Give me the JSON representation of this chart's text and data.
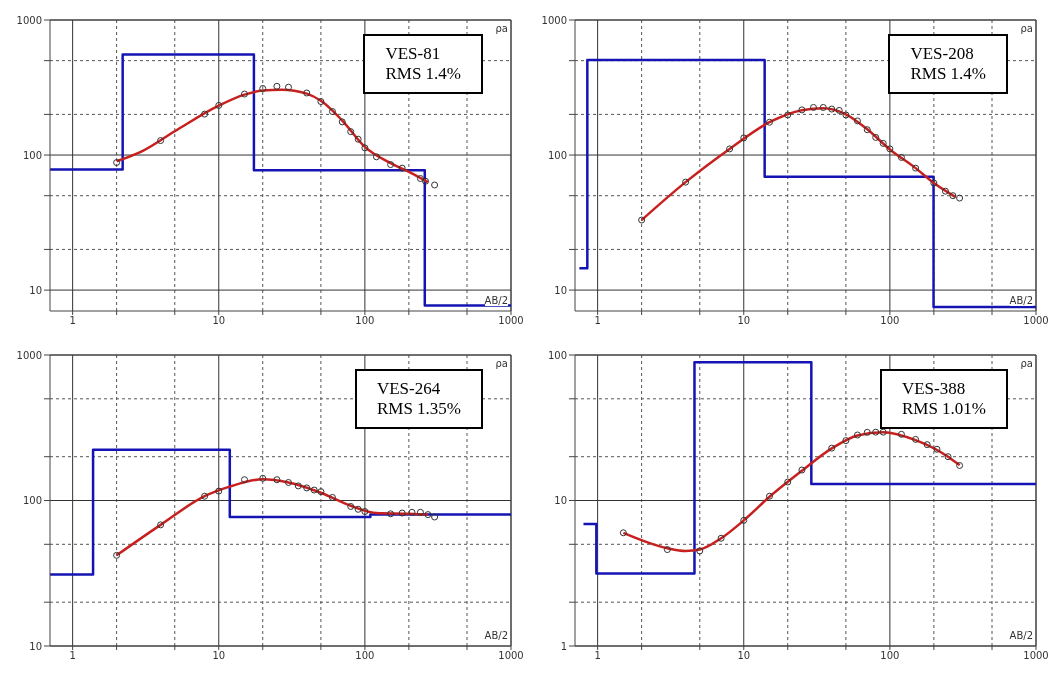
{
  "chart_data": [
    {
      "type": "line",
      "xlabel": "AB/2",
      "ylabel": "ρa",
      "annotations": [
        "VES-81",
        "RMS 1.4%"
      ],
      "log": "xy",
      "grid": true,
      "xlim": [
        0.7,
        1000
      ],
      "ylim": [
        7,
        1000
      ],
      "xticks": [
        1,
        {
          "value": 2,
          "label": null
        },
        {
          "value": 5,
          "label": null
        },
        10,
        {
          "value": 20,
          "label": null
        },
        {
          "value": 50,
          "label": null
        },
        100,
        {
          "value": 200,
          "label": null
        },
        {
          "value": 500,
          "label": null
        },
        1000
      ],
      "yticks": [
        10,
        {
          "value": 20,
          "label": null
        },
        {
          "value": 50,
          "label": null
        },
        100,
        {
          "value": 200,
          "label": null
        },
        {
          "value": 500,
          "label": null
        },
        1000
      ],
      "series": [
        {
          "type": "step",
          "color": "#1414b4",
          "x": [
            0.7,
            2.2,
            17.4,
            257,
            1000
          ],
          "values": [
            78,
            555,
            77,
            7.7,
            7.7
          ]
        },
        {
          "color": "#c8201e",
          "x": [
            2,
            3,
            5,
            10,
            15,
            20,
            27,
            40,
            50,
            70,
            100,
            150,
            200,
            270
          ],
          "values": [
            90,
            107,
            150,
            232,
            280,
            300,
            305,
            285,
            252,
            180,
            115,
            87,
            75,
            63
          ]
        },
        {
          "type": "scatter",
          "color": "#333333",
          "marker": "circle",
          "x": [
            2,
            4,
            8,
            10,
            15,
            20,
            25,
            30,
            40,
            50,
            60,
            70,
            80,
            90,
            100,
            120,
            150,
            180,
            240,
            260,
            300
          ],
          "values": [
            88,
            128,
            201,
            233,
            283,
            311,
            323,
            318,
            288,
            249,
            210,
            176,
            149,
            131,
            113,
            97,
            85,
            80,
            67,
            64,
            60
          ]
        }
      ]
    },
    {
      "type": "line",
      "xlabel": "AB/2",
      "ylabel": "ρa",
      "annotations": [
        "VES-208",
        "RMS 1.4%"
      ],
      "log": "xy",
      "grid": true,
      "xlim": [
        0.7,
        1000
      ],
      "ylim": [
        7,
        1000
      ],
      "xticks": [
        1,
        {
          "value": 2,
          "label": null
        },
        {
          "value": 5,
          "label": null
        },
        10,
        {
          "value": 20,
          "label": null
        },
        {
          "value": 50,
          "label": null
        },
        100,
        {
          "value": 200,
          "label": null
        },
        {
          "value": 500,
          "label": null
        },
        1000
      ],
      "yticks": [
        10,
        {
          "value": 20,
          "label": null
        },
        {
          "value": 50,
          "label": null
        },
        100,
        {
          "value": 200,
          "label": null
        },
        {
          "value": 500,
          "label": null
        },
        1000
      ],
      "series": [
        {
          "type": "step",
          "color": "#1414b4",
          "x": [
            0.75,
            0.85,
            13.9,
            199,
            1000
          ],
          "values": [
            14.5,
            505,
            69,
            7.5,
            7.5
          ]
        },
        {
          "color": "#c8201e",
          "x": [
            2,
            4,
            8,
            15,
            25,
            35,
            50,
            70,
            100,
            150,
            200,
            280
          ],
          "values": [
            33,
            63,
            111,
            175,
            215,
            222,
            200,
            155,
            110,
            80,
            62,
            49
          ]
        },
        {
          "type": "scatter",
          "color": "#333333",
          "marker": "circle",
          "x": [
            2,
            4,
            8,
            10,
            15,
            20,
            25,
            30,
            35,
            40,
            45,
            50,
            60,
            70,
            80,
            90,
            100,
            120,
            150,
            200,
            240,
            270,
            300
          ],
          "values": [
            33,
            63,
            111,
            134,
            175,
            198,
            216,
            225,
            225,
            219,
            214,
            198,
            179,
            154,
            135,
            122,
            111,
            96,
            80,
            62,
            54,
            50,
            48
          ]
        }
      ]
    },
    {
      "type": "line",
      "xlabel": "AB/2",
      "ylabel": "ρa",
      "annotations": [
        "VES-264",
        "RMS 1.35%"
      ],
      "log": "xy",
      "grid": true,
      "xlim": [
        0.7,
        1000
      ],
      "ylim": [
        10,
        1000
      ],
      "xticks": [
        1,
        {
          "value": 2,
          "label": null
        },
        {
          "value": 5,
          "label": null
        },
        10,
        {
          "value": 20,
          "label": null
        },
        {
          "value": 50,
          "label": null
        },
        100,
        {
          "value": 200,
          "label": null
        },
        {
          "value": 500,
          "label": null
        },
        1000
      ],
      "yticks": [
        10,
        {
          "value": 20,
          "label": null
        },
        {
          "value": 50,
          "label": null
        },
        100,
        {
          "value": 200,
          "label": null
        },
        {
          "value": 500,
          "label": null
        },
        1000
      ],
      "series": [
        {
          "type": "step",
          "color": "#1414b4",
          "x": [
            0.7,
            1.38,
            11.9,
            109,
            1000
          ],
          "values": [
            31,
            223,
            77,
            80,
            80
          ]
        },
        {
          "color": "#c8201e",
          "x": [
            2,
            4,
            8,
            12,
            20,
            30,
            50,
            80,
            120,
            200,
            270
          ],
          "values": [
            42,
            68,
            107,
            125,
            140,
            133,
            113,
            92,
            82,
            81,
            80
          ]
        },
        {
          "type": "scatter",
          "color": "#333333",
          "marker": "circle",
          "x": [
            2,
            4,
            8,
            10,
            15,
            20,
            25,
            30,
            35,
            40,
            45,
            50,
            60,
            80,
            90,
            100,
            150,
            180,
            210,
            240,
            270,
            300
          ],
          "values": [
            42,
            68,
            107,
            116,
            139,
            142,
            139,
            133,
            126,
            122,
            118,
            115,
            105,
            91,
            87,
            84,
            81,
            82,
            83,
            83,
            80,
            77
          ]
        }
      ]
    },
    {
      "type": "line",
      "xlabel": "AB/2",
      "ylabel": "ρa",
      "annotations": [
        "VES-388",
        "RMS 1.01%"
      ],
      "log": "xy",
      "grid": true,
      "xlim": [
        0.7,
        1000
      ],
      "ylim": [
        1,
        100
      ],
      "xticks": [
        1,
        {
          "value": 2,
          "label": null
        },
        {
          "value": 5,
          "label": null
        },
        10,
        {
          "value": 20,
          "label": null
        },
        {
          "value": 50,
          "label": null
        },
        100,
        {
          "value": 200,
          "label": null
        },
        {
          "value": 500,
          "label": null
        },
        1000
      ],
      "yticks": [
        1,
        {
          "value": 2,
          "label": null
        },
        {
          "value": 5,
          "label": null
        },
        10,
        {
          "value": 20,
          "label": null
        },
        {
          "value": 50,
          "label": null
        },
        100
      ],
      "series": [
        {
          "type": "step",
          "color": "#1414b4",
          "x": [
            0.8,
            0.98,
            4.6,
            29,
            1000
          ],
          "values": [
            6.9,
            3.15,
            89,
            13,
            13
          ]
        },
        {
          "color": "#c8201e",
          "x": [
            1.5,
            3,
            4,
            5,
            7,
            10,
            15,
            25,
            40,
            60,
            90,
            150,
            250,
            300
          ],
          "values": [
            6.0,
            4.7,
            4.5,
            4.6,
            5.5,
            7.3,
            10.6,
            16,
            22.8,
            28,
            29.5,
            26,
            20,
            17.5
          ]
        },
        {
          "type": "scatter",
          "color": "#333333",
          "marker": "circle",
          "x": [
            1.5,
            3,
            5,
            7,
            10,
            15,
            20,
            25,
            40,
            50,
            60,
            70,
            80,
            90,
            120,
            150,
            180,
            210,
            250,
            300
          ],
          "values": [
            6.0,
            4.6,
            4.5,
            5.5,
            7.3,
            10.7,
            13.4,
            16.2,
            22.9,
            25.8,
            28.2,
            29.4,
            29.5,
            29.5,
            28.5,
            26.3,
            24.2,
            22.5,
            20,
            17.4
          ]
        }
      ]
    }
  ]
}
